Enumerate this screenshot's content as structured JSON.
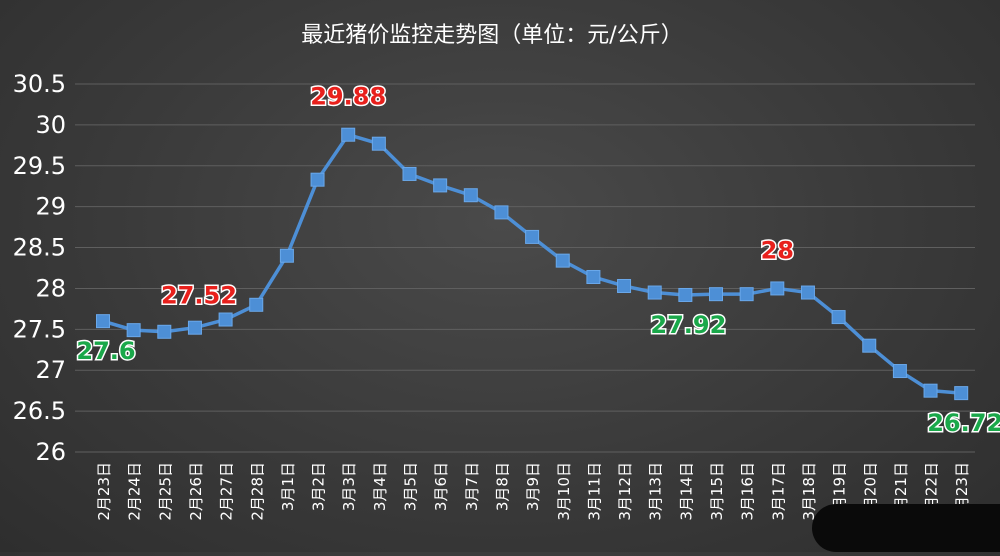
{
  "chart_data": {
    "type": "line",
    "title": "最近猪价监控走势图（单位：元/公斤）",
    "categories": [
      "2月23日",
      "2月24日",
      "2月25日",
      "2月26日",
      "2月27日",
      "2月28日",
      "3月1日",
      "3月2日",
      "3月3日",
      "3月4日",
      "3月5日",
      "3月6日",
      "3月7日",
      "3月8日",
      "3月9日",
      "3月10日",
      "3月11日",
      "3月12日",
      "3月13日",
      "3月14日",
      "3月15日",
      "3月16日",
      "3月17日",
      "3月18日",
      "3月19日",
      "3月20日",
      "3月21日",
      "3月22日",
      "3月23日"
    ],
    "series": [
      {
        "values": [
          27.6,
          27.49,
          27.47,
          27.52,
          27.62,
          27.8,
          28.4,
          29.33,
          29.88,
          29.77,
          29.4,
          29.26,
          29.14,
          28.93,
          28.63,
          28.34,
          28.14,
          28.03,
          27.95,
          27.92,
          27.93,
          27.93,
          28.0,
          27.95,
          27.65,
          27.3,
          26.99,
          26.75,
          26.72
        ],
        "color": "#4d8fd6"
      }
    ],
    "data_labels": [
      {
        "index": 0,
        "text": "27.6",
        "color": "green"
      },
      {
        "index": 3,
        "text": "27.52",
        "color": "red"
      },
      {
        "index": 8,
        "text": "29.88",
        "color": "red"
      },
      {
        "index": 19,
        "text": "27.92",
        "color": "green"
      },
      {
        "index": 22,
        "text": "28",
        "color": "red"
      },
      {
        "index": 28,
        "text": "26.72",
        "color": "green"
      }
    ],
    "yticks": [
      "26",
      "26.5",
      "27",
      "27.5",
      "28",
      "28.5",
      "29",
      "29.5",
      "30",
      "30.5"
    ],
    "ylim": [
      26,
      30.5
    ],
    "grid": true,
    "marker": "square"
  }
}
